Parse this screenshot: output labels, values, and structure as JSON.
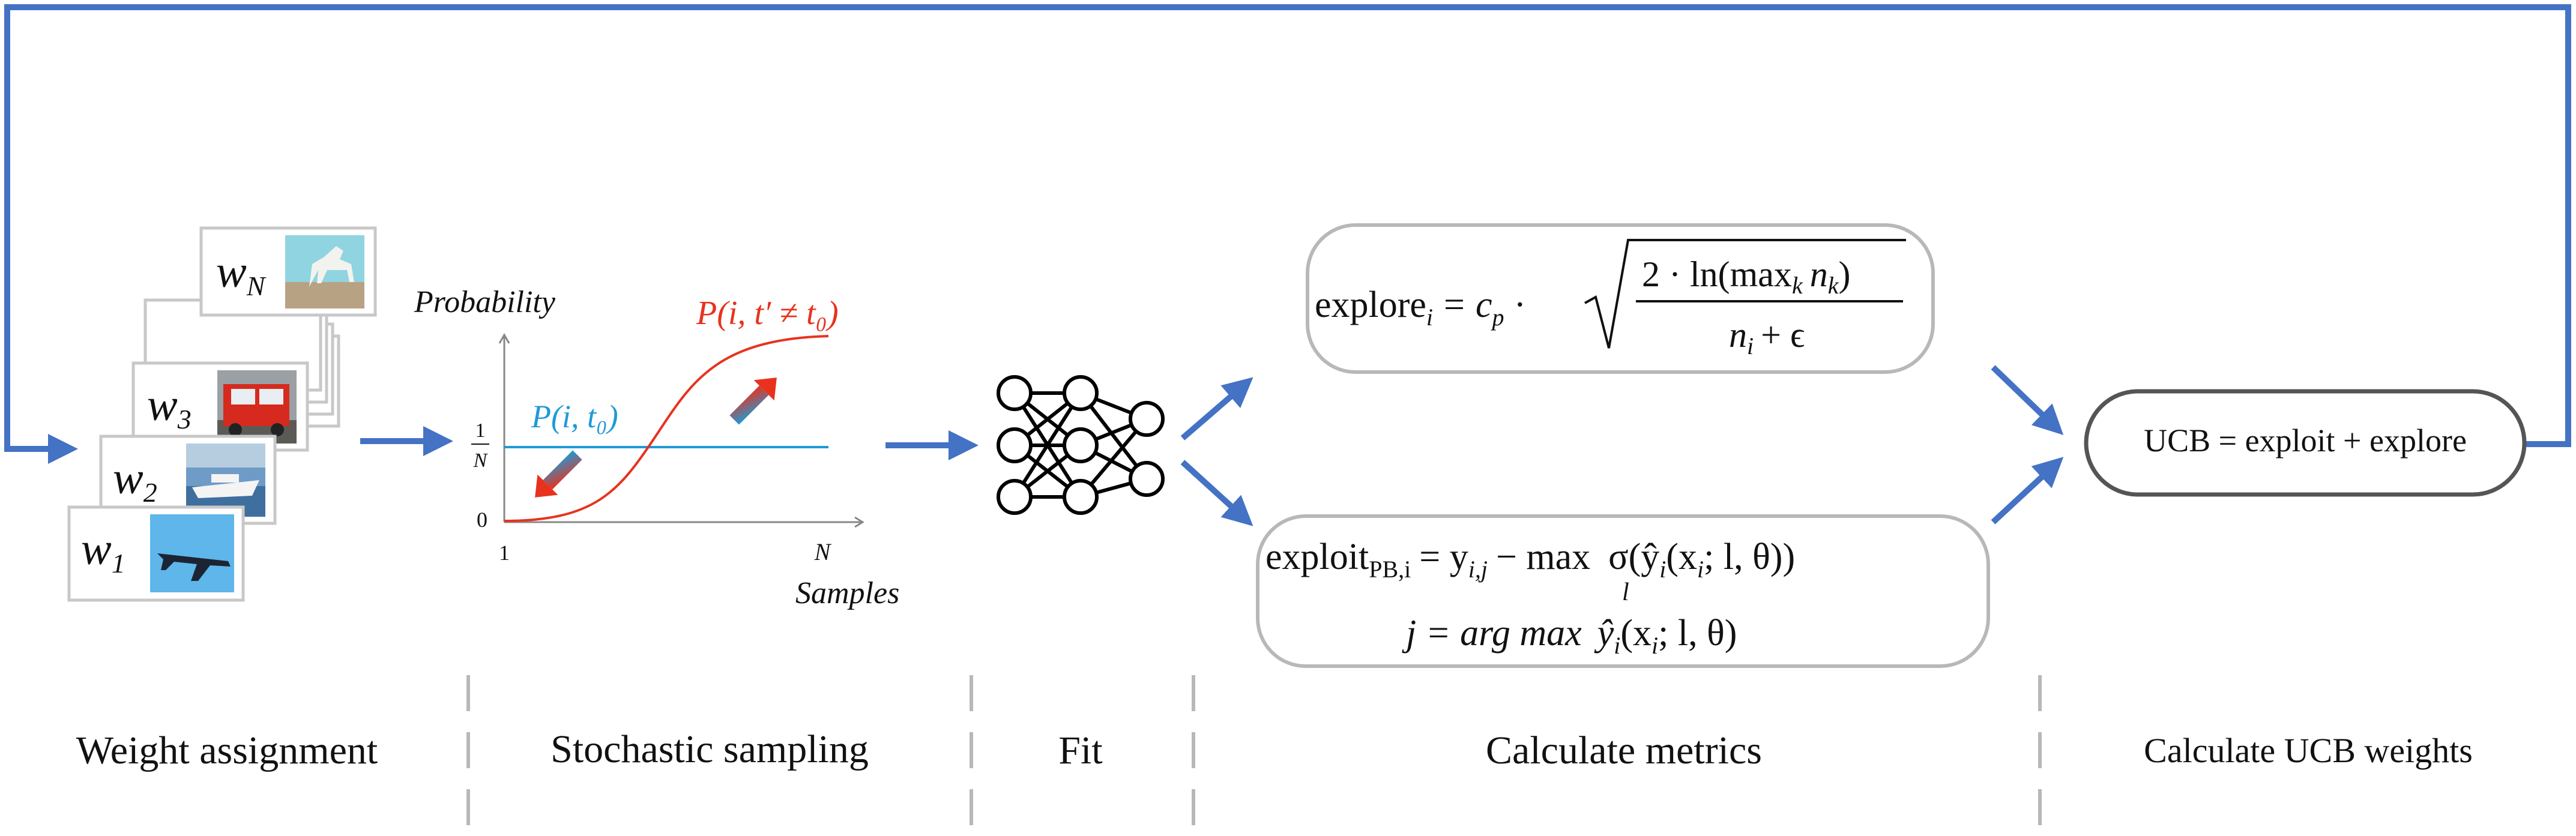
{
  "stages": {
    "weight_assignment": "Weight assignment",
    "stochastic_sampling": "Stochastic sampling",
    "fit": "Fit",
    "calculate_metrics": "Calculate metrics",
    "calculate_ucb_weights": "Calculate UCB weights"
  },
  "weight_cards": [
    {
      "weight": "w",
      "sub": "1",
      "image": "airplane"
    },
    {
      "weight": "w",
      "sub": "2",
      "image": "ship"
    },
    {
      "weight": "w",
      "sub": "3",
      "image": "truck"
    },
    {
      "weight": "w",
      "sub": "N",
      "image": "horse"
    }
  ],
  "sampling_plot": {
    "y_label": "Probability",
    "x_label": "Samples",
    "y_tick_top_num": "1",
    "y_tick_top_den": "N",
    "y_tick_zero": "0",
    "x_tick_start": "1",
    "x_tick_end": "N",
    "red_curve_label": "P(i, t′ ≠ t₀)",
    "blue_line_label": "P(i, t₀)",
    "red_color": "#e8321e",
    "blue_color": "#1f9ad6"
  },
  "network": {
    "layers": [
      3,
      3,
      2
    ],
    "icon": "neural-network-icon"
  },
  "metrics": {
    "explore_lhs": "explore",
    "explore_lhs_sub": "i",
    "explore_eq": "=",
    "explore_coef": "c",
    "explore_coef_sub": "p",
    "explore_dot": "·",
    "explore_num": "2 · ln(max",
    "explore_num_sub": "k",
    "explore_num_tail": "n",
    "explore_num_tail_sub": "k",
    "explore_num_close": ")",
    "explore_den": "n",
    "explore_den_sub": "i",
    "explore_den_tail": "+ ϵ",
    "exploit_lhs": "exploit",
    "exploit_lhs_sub": "PB,i",
    "exploit_rhs": "= y",
    "exploit_rhs_sub": "i,j",
    "exploit_minus": "− max",
    "exploit_max_sub": "l",
    "exploit_sigma": "σ(ŷ",
    "exploit_sigma_sub": "i",
    "exploit_sigma_tail": "(x",
    "exploit_sigma_tail_sub": "i",
    "exploit_sigma_end": "; l, θ))",
    "j_line_lhs": "j = arg max",
    "j_line_rhs": "ŷ",
    "j_line_rhs_sub": "i",
    "j_line_tail": "(x",
    "j_line_tail_sub": "i",
    "j_line_end": "; l, θ)"
  },
  "ucb": {
    "formula": "UCB = exploit + explore"
  },
  "colors": {
    "arrow": "#4472c4",
    "box_border": "#b8b8b8",
    "ucb_border": "#555555",
    "separator": "#b8b8b8"
  }
}
